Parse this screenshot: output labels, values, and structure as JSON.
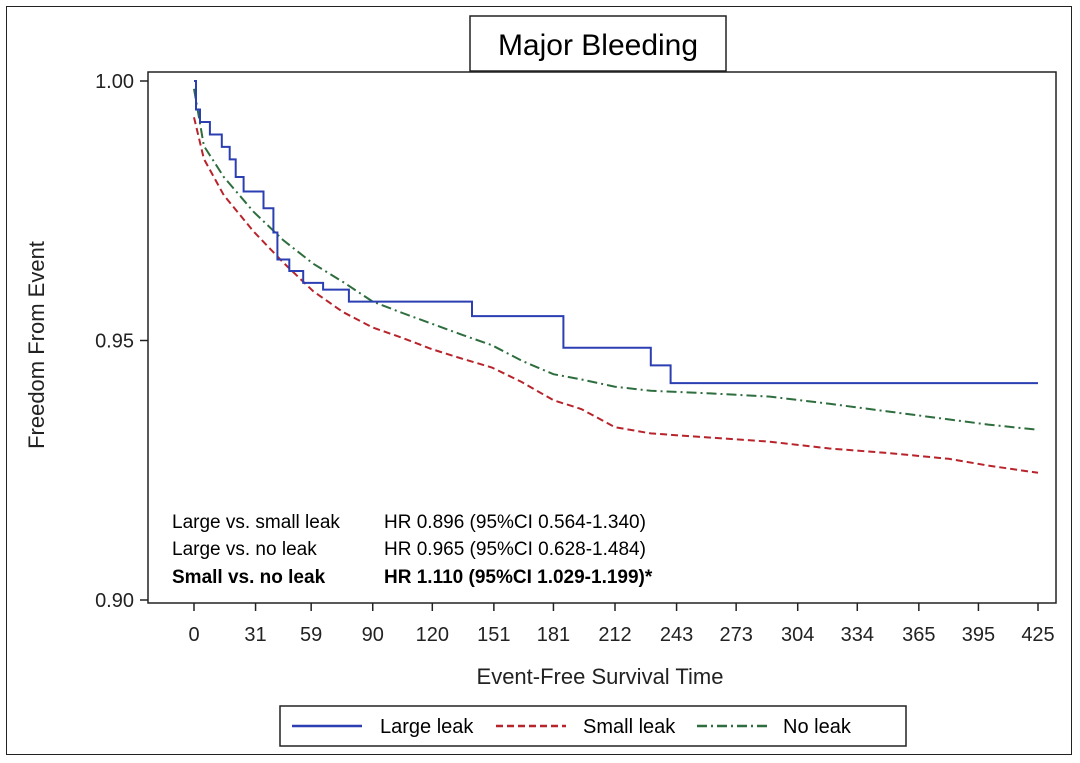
{
  "chart_data": {
    "type": "line",
    "title": "Major Bleeding",
    "xlabel": "Event-Free Survival Time",
    "ylabel": "Freedom From Event",
    "xlim": [
      -10,
      430
    ],
    "ylim": [
      0.9,
      1.0
    ],
    "x_ticks": [
      0,
      31,
      59,
      90,
      120,
      151,
      181,
      212,
      243,
      273,
      304,
      334,
      365,
      395,
      425
    ],
    "y_ticks": [
      0.9,
      0.95,
      1.0
    ],
    "y_tick_labels": [
      "0.90",
      "0.95",
      "1.00"
    ],
    "grid": false,
    "legend_position": "bottom",
    "series": [
      {
        "name": "Large leak",
        "color": "#2b3fb3",
        "line_style": "solid",
        "step": true,
        "x": [
          0,
          1,
          3,
          8,
          14,
          18,
          21,
          25,
          35,
          40,
          42,
          48,
          55,
          65,
          78,
          95,
          140,
          160,
          186,
          200,
          230,
          235,
          240,
          425
        ],
        "y": [
          1.0,
          0.9945,
          0.9921,
          0.9897,
          0.9873,
          0.9849,
          0.9815,
          0.9787,
          0.9755,
          0.9708,
          0.9656,
          0.9634,
          0.9611,
          0.9598,
          0.9575,
          0.9575,
          0.9547,
          0.9547,
          0.9486,
          0.9486,
          0.9452,
          0.9452,
          0.9418,
          0.9418
        ]
      },
      {
        "name": "Small leak",
        "color": "#b8242c",
        "line_style": "dashed",
        "step": false,
        "x": [
          0,
          5,
          15,
          30,
          45,
          60,
          75,
          90,
          105,
          120,
          135,
          150,
          165,
          181,
          195,
          212,
          230,
          260,
          290,
          320,
          350,
          380,
          400,
          425
        ],
        "y": [
          0.993,
          0.985,
          0.978,
          0.971,
          0.965,
          0.9595,
          0.9555,
          0.9525,
          0.9505,
          0.9483,
          0.9465,
          0.9448,
          0.942,
          0.9385,
          0.9368,
          0.9333,
          0.9321,
          0.9313,
          0.9305,
          0.9292,
          0.9283,
          0.9272,
          0.9259,
          0.9245
        ]
      },
      {
        "name": "No leak",
        "color": "#2e6e3e",
        "line_style": "dash-dot",
        "step": false,
        "x": [
          0,
          5,
          15,
          30,
          45,
          60,
          75,
          90,
          105,
          120,
          135,
          150,
          165,
          181,
          195,
          212,
          230,
          260,
          290,
          320,
          350,
          380,
          400,
          425
        ],
        "y": [
          0.9985,
          0.9875,
          0.9815,
          0.9748,
          0.9693,
          0.9648,
          0.9613,
          0.9575,
          0.9553,
          0.9532,
          0.9511,
          0.9491,
          0.9461,
          0.9435,
          0.9425,
          0.9411,
          0.9403,
          0.9398,
          0.9392,
          0.9378,
          0.9363,
          0.9348,
          0.9338,
          0.9328
        ]
      }
    ],
    "annotations": [
      {
        "label": "Large vs. small leak",
        "value": "HR 0.896 (95%CI 0.564-1.340)",
        "bold": false
      },
      {
        "label": "Large vs. no leak",
        "value": "HR 0.965 (95%CI 0.628-1.484)",
        "bold": false
      },
      {
        "label": "Small vs. no leak",
        "value": "HR 1.110 (95%CI 1.029-1.199)*",
        "bold": true
      }
    ]
  }
}
